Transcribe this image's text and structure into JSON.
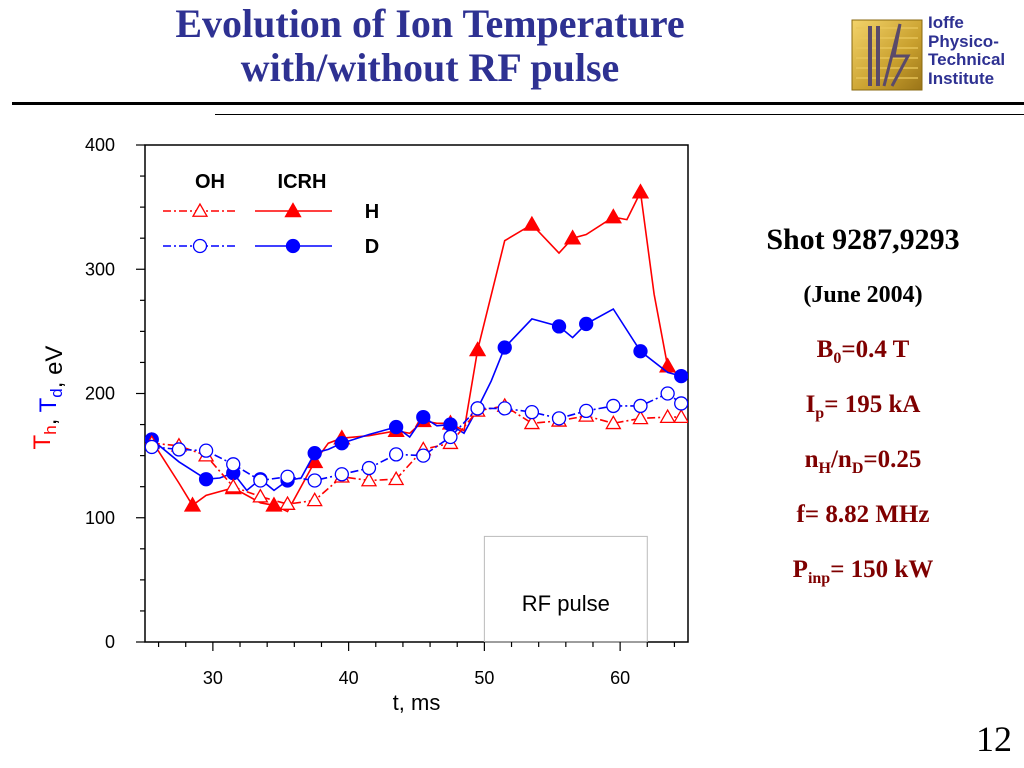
{
  "slide": {
    "title_line1": "Evolution of Ion Temperature",
    "title_line2": "with/without RF pulse",
    "page_number": "12",
    "logo_lines": [
      "Ioffe",
      "Physico-",
      "Technical",
      "Institute"
    ]
  },
  "info": {
    "shot": "Shot 9287,9293",
    "date": "(June 2004)",
    "b0": {
      "base": "B",
      "sub": "0",
      "rest": "=0.4 T"
    },
    "ip": {
      "base": "I",
      "sub": "p",
      "rest": "= 195 kA"
    },
    "ratio": {
      "b1": "n",
      "s1": "H",
      "mid": "/n",
      "s2": "D",
      "rest": "=0.25"
    },
    "freq": "f= 8.82 MHz",
    "pinp": {
      "base": "P",
      "sub": "inp",
      "rest": "= 150 kW"
    }
  },
  "chart_data": {
    "type": "line",
    "xlabel": "t,  ms",
    "ylabel_parts": [
      {
        "text": "T",
        "sub": "h",
        "color": "#ff0000"
      },
      {
        "text": ", ",
        "color": "#000000"
      },
      {
        "text": "T",
        "sub": "d",
        "color": "#0000ff"
      },
      {
        "text": ", eV",
        "color": "#000000"
      }
    ],
    "xlim": [
      25,
      65
    ],
    "ylim": [
      0,
      400
    ],
    "xticks": [
      30,
      40,
      50,
      60
    ],
    "yticks": [
      0,
      100,
      200,
      300,
      400
    ],
    "legend": {
      "position": "top-left",
      "col_headers": [
        "OH",
        "ICRH"
      ],
      "row_labels": [
        "H",
        "D"
      ]
    },
    "annotation": "RF pulse",
    "rf_pulse": [
      50,
      62
    ],
    "colors": {
      "H": "#ff0000",
      "D": "#0000ff"
    },
    "series": [
      {
        "name": "H",
        "mode": "ICRH",
        "color": "#ff0000",
        "marker": "triangle",
        "filled": true,
        "dash": "solid",
        "x": [
          25.5,
          27.5,
          28.5,
          29.5,
          31.5,
          33.5,
          34.5,
          35.5,
          37.5,
          38.5,
          39.5,
          41.5,
          43.5,
          44.5,
          45.5,
          46.5,
          47.5,
          48.5,
          49.5,
          51.5,
          53.5,
          55.5,
          56.5,
          57.5,
          59.5,
          60.5,
          61.5,
          62.5,
          63.5,
          64.5
        ],
        "y": [
          162,
          128,
          110,
          118,
          124,
          112,
          110,
          105,
          145,
          160,
          164,
          166,
          170,
          168,
          178,
          176,
          176,
          170,
          235,
          323,
          336,
          313,
          325,
          328,
          342,
          340,
          362,
          280,
          222,
          213
        ]
      },
      {
        "name": "D",
        "mode": "ICRH",
        "color": "#0000ff",
        "marker": "circle",
        "filled": true,
        "dash": "solid",
        "x": [
          25.5,
          27.5,
          29.5,
          30.5,
          31.5,
          32.5,
          33.5,
          34.5,
          35.5,
          36.5,
          37.5,
          38.5,
          39.5,
          41.5,
          43.5,
          44.5,
          45.5,
          46.5,
          47.5,
          48.5,
          49.5,
          50.5,
          51.5,
          53.5,
          55.5,
          56.5,
          57.5,
          59.5,
          61.5,
          63.5,
          64.5
        ],
        "y": [
          163,
          145,
          131,
          132,
          136,
          122,
          131,
          122,
          130,
          132,
          152,
          155,
          160,
          167,
          173,
          165,
          181,
          174,
          175,
          168,
          188,
          210,
          237,
          260,
          254,
          245,
          256,
          268,
          234,
          217,
          214
        ]
      },
      {
        "name": "H",
        "mode": "OH",
        "color": "#ff0000",
        "marker": "triangle",
        "filled": false,
        "dash": "dashdot",
        "x": [
          25.5,
          27.5,
          29.5,
          31.5,
          33.5,
          35.5,
          37.5,
          39.5,
          41.5,
          43.5,
          45.5,
          47.5,
          49.5,
          51.5,
          53.5,
          55.5,
          57.5,
          59.5,
          61.5,
          63.5,
          64.5
        ],
        "y": [
          160,
          158,
          150,
          125,
          117,
          111,
          114,
          133,
          130,
          131,
          155,
          160,
          186,
          190,
          176,
          178,
          182,
          176,
          180,
          181,
          181
        ]
      },
      {
        "name": "D",
        "mode": "OH",
        "color": "#0000ff",
        "marker": "circle",
        "filled": false,
        "dash": "dashdot",
        "x": [
          25.5,
          27.5,
          29.5,
          31.5,
          33.5,
          35.5,
          37.5,
          39.5,
          41.5,
          43.5,
          45.5,
          47.5,
          49.5,
          51.5,
          53.5,
          55.5,
          57.5,
          59.5,
          61.5,
          63.5,
          64.5
        ],
        "y": [
          157,
          155,
          154,
          143,
          130,
          133,
          130,
          135,
          140,
          151,
          150,
          165,
          188,
          188,
          185,
          180,
          186,
          190,
          190,
          200,
          192
        ]
      }
    ]
  }
}
